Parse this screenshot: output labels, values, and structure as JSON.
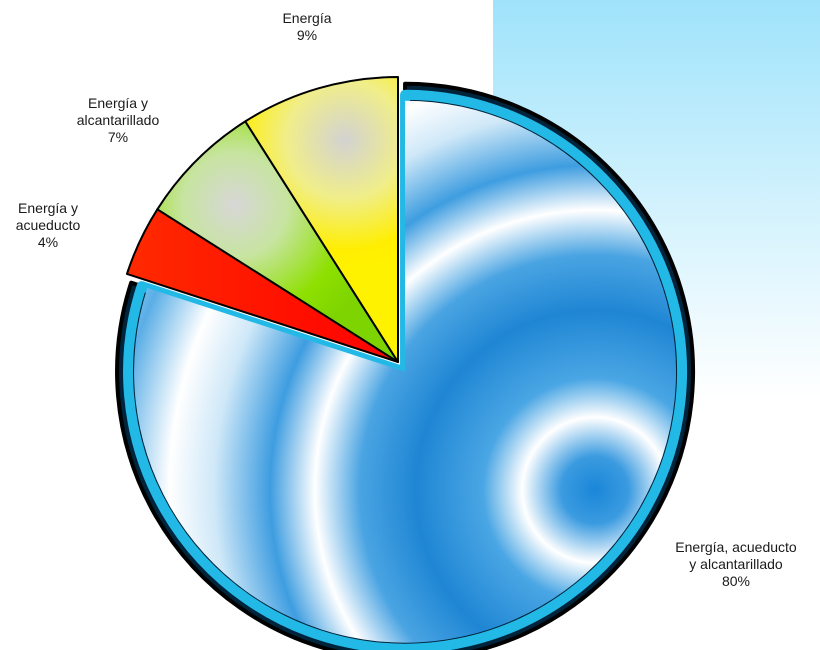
{
  "chart_data": {
    "type": "pie",
    "title": "",
    "start_angle_deg": 0,
    "direction": "clockwise",
    "slices": [
      {
        "name_lines": [
          "Energía, acueducto",
          "y alcantarillado"
        ],
        "value": 80,
        "label": "80%",
        "color": "#2f8fd8"
      },
      {
        "name_lines": [
          "Energía y",
          "acueducto"
        ],
        "value": 4,
        "label": "4%",
        "color": "#ff2200"
      },
      {
        "name_lines": [
          "Energía y",
          "alcantarillado"
        ],
        "value": 7,
        "label": "7%",
        "color": "#8ee000"
      },
      {
        "name_lines": [
          "Energía"
        ],
        "value": 9,
        "label": "9%",
        "color": "#ffee00"
      }
    ]
  }
}
